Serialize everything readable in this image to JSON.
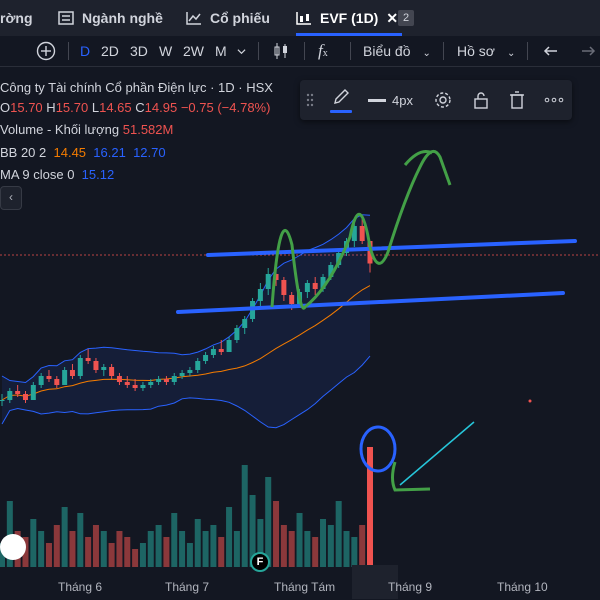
{
  "tabs": [
    {
      "label": "rờng",
      "icon": "list-icon"
    },
    {
      "label": "Ngành nghề",
      "icon": "list-icon"
    },
    {
      "label": "Cổ phiếu",
      "icon": "chart-icon"
    },
    {
      "label": "EVF (1D)",
      "icon": "candles-icon",
      "close": "✕"
    }
  ],
  "tab_count": "2",
  "toolbar": {
    "add": "⊕",
    "timeframes": [
      "D",
      "2D",
      "3D",
      "W",
      "2W",
      "M"
    ],
    "selected_timeframe": "D",
    "fx": "f",
    "chart_type_label": "Biểu đồ",
    "profile_label": "Hồ sơ"
  },
  "legend": {
    "title": "Công ty Tài chính Cổ phần Điện lực · 1D · HSX",
    "o_label": "O",
    "o": "15.70",
    "h_label": "H",
    "h": "15.70",
    "l_label": "L",
    "l": "14.65",
    "c_label": "C",
    "c": "14.95",
    "change": "−0.75 (−4.78%)",
    "volume_label": "Volume - Khối lượng",
    "volume": "51.582M",
    "bb_label": "BB 20 2",
    "bb_mid": "14.45",
    "bb_up": "16.21",
    "bb_low": "12.70",
    "ma_label": "MA 9 close 0",
    "ma": "15.12"
  },
  "drawbar": {
    "size": "4px"
  },
  "collapse_icon": "‹",
  "events_marker": "F",
  "chart_data": {
    "type": "candlestick",
    "months": [
      "Tháng 6",
      "Tháng 7",
      "Tháng Tám",
      "Tháng 9",
      "Tháng 10"
    ],
    "colors": {
      "up": "#26a69a",
      "down": "#ef5350",
      "bb_fill": "#2962ff",
      "ma": "#f57c00"
    },
    "ohlc": [
      [
        10.4,
        10.6,
        10.2,
        10.4
      ],
      [
        10.4,
        10.8,
        10.3,
        10.7
      ],
      [
        10.7,
        10.9,
        10.5,
        10.6
      ],
      [
        10.6,
        10.7,
        10.3,
        10.4
      ],
      [
        10.4,
        11.0,
        10.4,
        10.9
      ],
      [
        10.9,
        11.3,
        10.8,
        11.2
      ],
      [
        11.2,
        11.4,
        11.0,
        11.1
      ],
      [
        11.1,
        11.2,
        10.8,
        10.9
      ],
      [
        10.9,
        11.5,
        10.9,
        11.4
      ],
      [
        11.4,
        11.6,
        11.1,
        11.2
      ],
      [
        11.2,
        11.9,
        11.1,
        11.8
      ],
      [
        11.8,
        12.1,
        11.6,
        11.7
      ],
      [
        11.7,
        11.8,
        11.3,
        11.4
      ],
      [
        11.4,
        11.6,
        11.2,
        11.5
      ],
      [
        11.5,
        11.6,
        11.1,
        11.2
      ],
      [
        11.2,
        11.3,
        10.9,
        11.0
      ],
      [
        11.0,
        11.2,
        10.8,
        10.9
      ],
      [
        10.9,
        11.1,
        10.7,
        10.8
      ],
      [
        10.8,
        11.0,
        10.7,
        10.9
      ],
      [
        10.9,
        11.1,
        10.8,
        11.0
      ],
      [
        11.0,
        11.2,
        10.9,
        11.1
      ],
      [
        11.1,
        11.2,
        10.9,
        11.0
      ],
      [
        11.0,
        11.3,
        10.9,
        11.2
      ],
      [
        11.2,
        11.4,
        11.1,
        11.3
      ],
      [
        11.3,
        11.5,
        11.2,
        11.4
      ],
      [
        11.4,
        11.8,
        11.3,
        11.7
      ],
      [
        11.7,
        12.0,
        11.6,
        11.9
      ],
      [
        11.9,
        12.2,
        11.8,
        12.1
      ],
      [
        12.1,
        12.4,
        11.9,
        12.0
      ],
      [
        12.0,
        12.5,
        12.0,
        12.4
      ],
      [
        12.4,
        12.9,
        12.3,
        12.8
      ],
      [
        12.8,
        13.2,
        12.6,
        13.1
      ],
      [
        13.1,
        13.8,
        13.0,
        13.7
      ],
      [
        13.7,
        14.3,
        13.5,
        14.1
      ],
      [
        14.1,
        14.8,
        13.9,
        14.6
      ],
      [
        14.6,
        15.1,
        14.2,
        14.4
      ],
      [
        14.4,
        14.5,
        13.7,
        13.9
      ],
      [
        13.9,
        14.0,
        13.4,
        13.6
      ],
      [
        13.6,
        14.1,
        13.5,
        14.0
      ],
      [
        14.0,
        14.4,
        13.8,
        14.3
      ],
      [
        14.3,
        14.5,
        13.9,
        14.1
      ],
      [
        14.1,
        14.6,
        14.0,
        14.5
      ],
      [
        14.5,
        15.0,
        14.4,
        14.9
      ],
      [
        14.9,
        15.4,
        14.8,
        15.3
      ],
      [
        15.3,
        15.8,
        15.2,
        15.7
      ],
      [
        15.7,
        16.4,
        15.5,
        16.2
      ],
      [
        16.2,
        16.5,
        15.6,
        15.7
      ],
      [
        15.7,
        15.7,
        14.65,
        14.95
      ]
    ],
    "volume_rel": [
      0.2,
      0.55,
      0.3,
      0.25,
      0.4,
      0.3,
      0.2,
      0.35,
      0.5,
      0.3,
      0.45,
      0.25,
      0.35,
      0.3,
      0.2,
      0.3,
      0.25,
      0.15,
      0.2,
      0.3,
      0.35,
      0.25,
      0.45,
      0.3,
      0.2,
      0.4,
      0.3,
      0.35,
      0.25,
      0.5,
      0.3,
      0.85,
      0.6,
      0.4,
      0.75,
      0.55,
      0.35,
      0.3,
      0.45,
      0.3,
      0.25,
      0.4,
      0.35,
      0.55,
      0.3,
      0.25,
      0.35,
      1.0
    ]
  }
}
